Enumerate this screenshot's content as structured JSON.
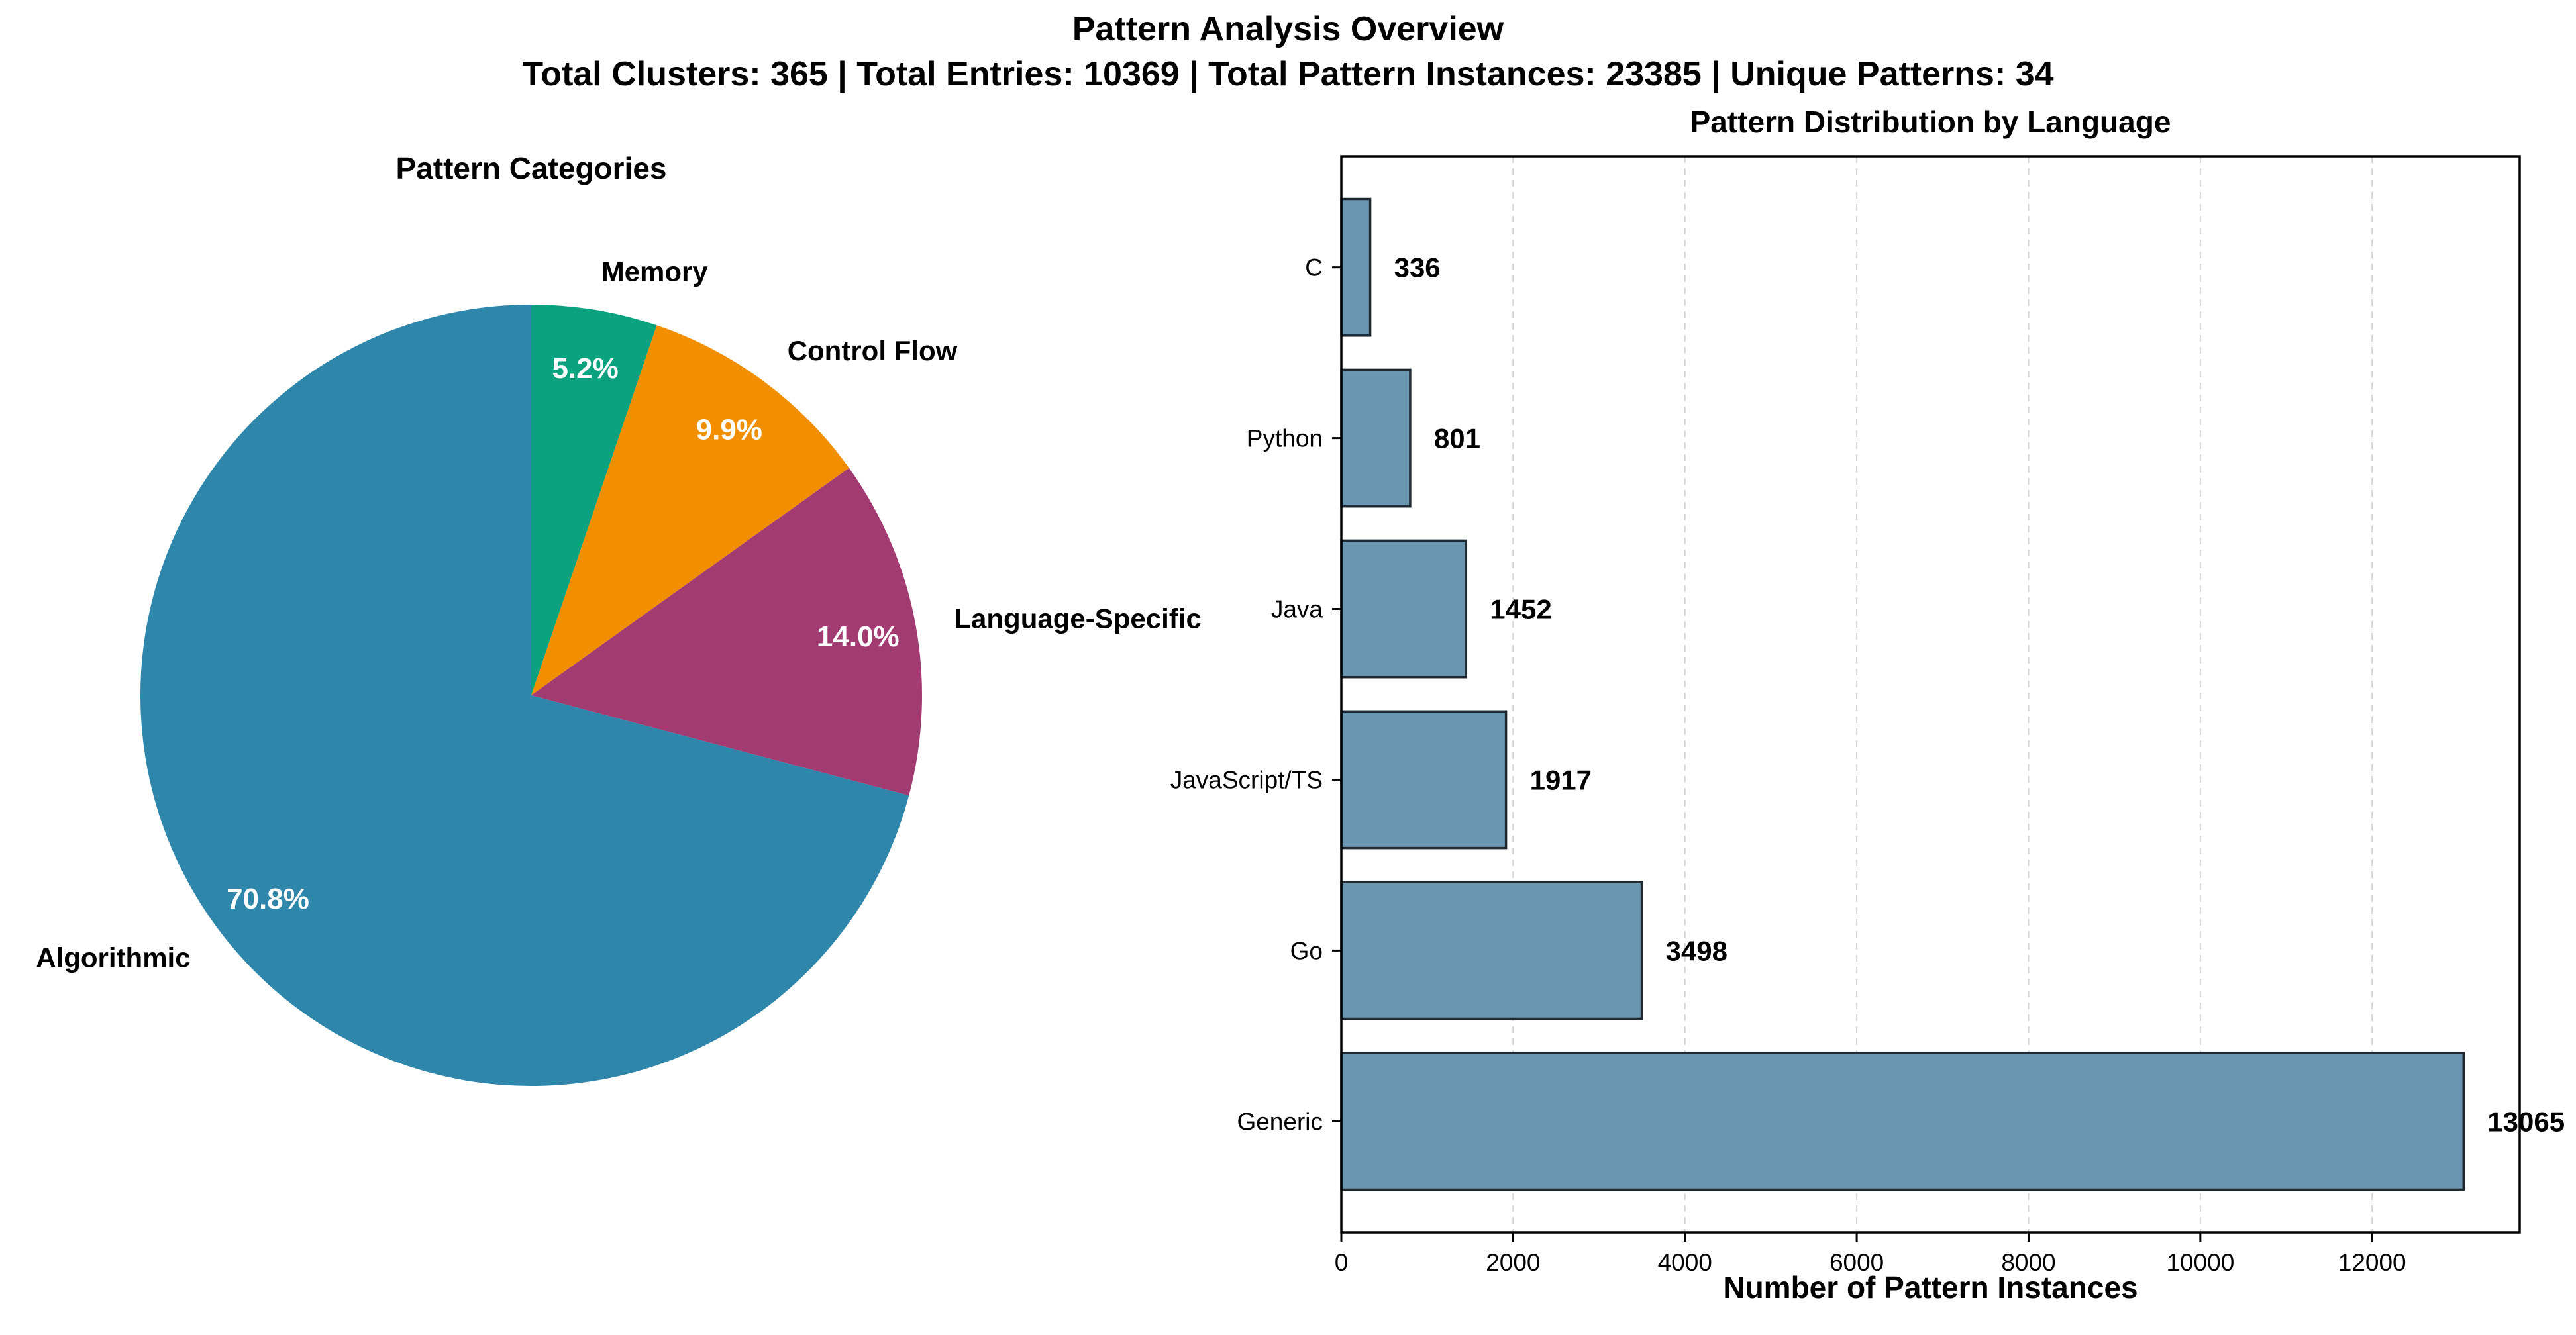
{
  "figure": {
    "title": "Pattern Analysis Overview",
    "subtitle": "Total Clusters: 365 | Total Entries: 10369 | Total Pattern Instances: 23385 | Unique Patterns: 34"
  },
  "chart_data": [
    {
      "type": "pie",
      "title": "Pattern Categories",
      "labels": [
        "Memory",
        "Control Flow",
        "Language-Specific",
        "Algorithmic"
      ],
      "values": [
        5.2,
        9.9,
        14.0,
        70.8
      ],
      "pct_labels": [
        "5.2%",
        "9.9%",
        "14.0%",
        "70.8%"
      ],
      "colors": [
        "#0BA37F",
        "#F18F01",
        "#A23B72",
        "#2E86AB"
      ],
      "start_angle": 90,
      "direction": "clockwise"
    },
    {
      "type": "bar",
      "orientation": "horizontal",
      "title": "Pattern Distribution by Language",
      "categories": [
        "Generic",
        "Go",
        "JavaScript/TS",
        "Java",
        "Python",
        "C"
      ],
      "values": [
        13065,
        3498,
        1917,
        1452,
        801,
        336
      ],
      "value_labels": [
        "13065",
        "3498",
        "1917",
        "1452",
        "801",
        "336"
      ],
      "xlabel": "Number of Pattern Instances",
      "ylabel": "",
      "xlim": [
        0,
        13718
      ],
      "xticks": [
        0,
        2000,
        4000,
        6000,
        8000,
        10000,
        12000
      ],
      "xtick_labels": [
        "0",
        "2000",
        "4000",
        "6000",
        "8000",
        "10000",
        "12000"
      ],
      "bar_color": "#6A96B2",
      "edge_color": "#1F2A33",
      "grid": "x-dashed"
    }
  ]
}
